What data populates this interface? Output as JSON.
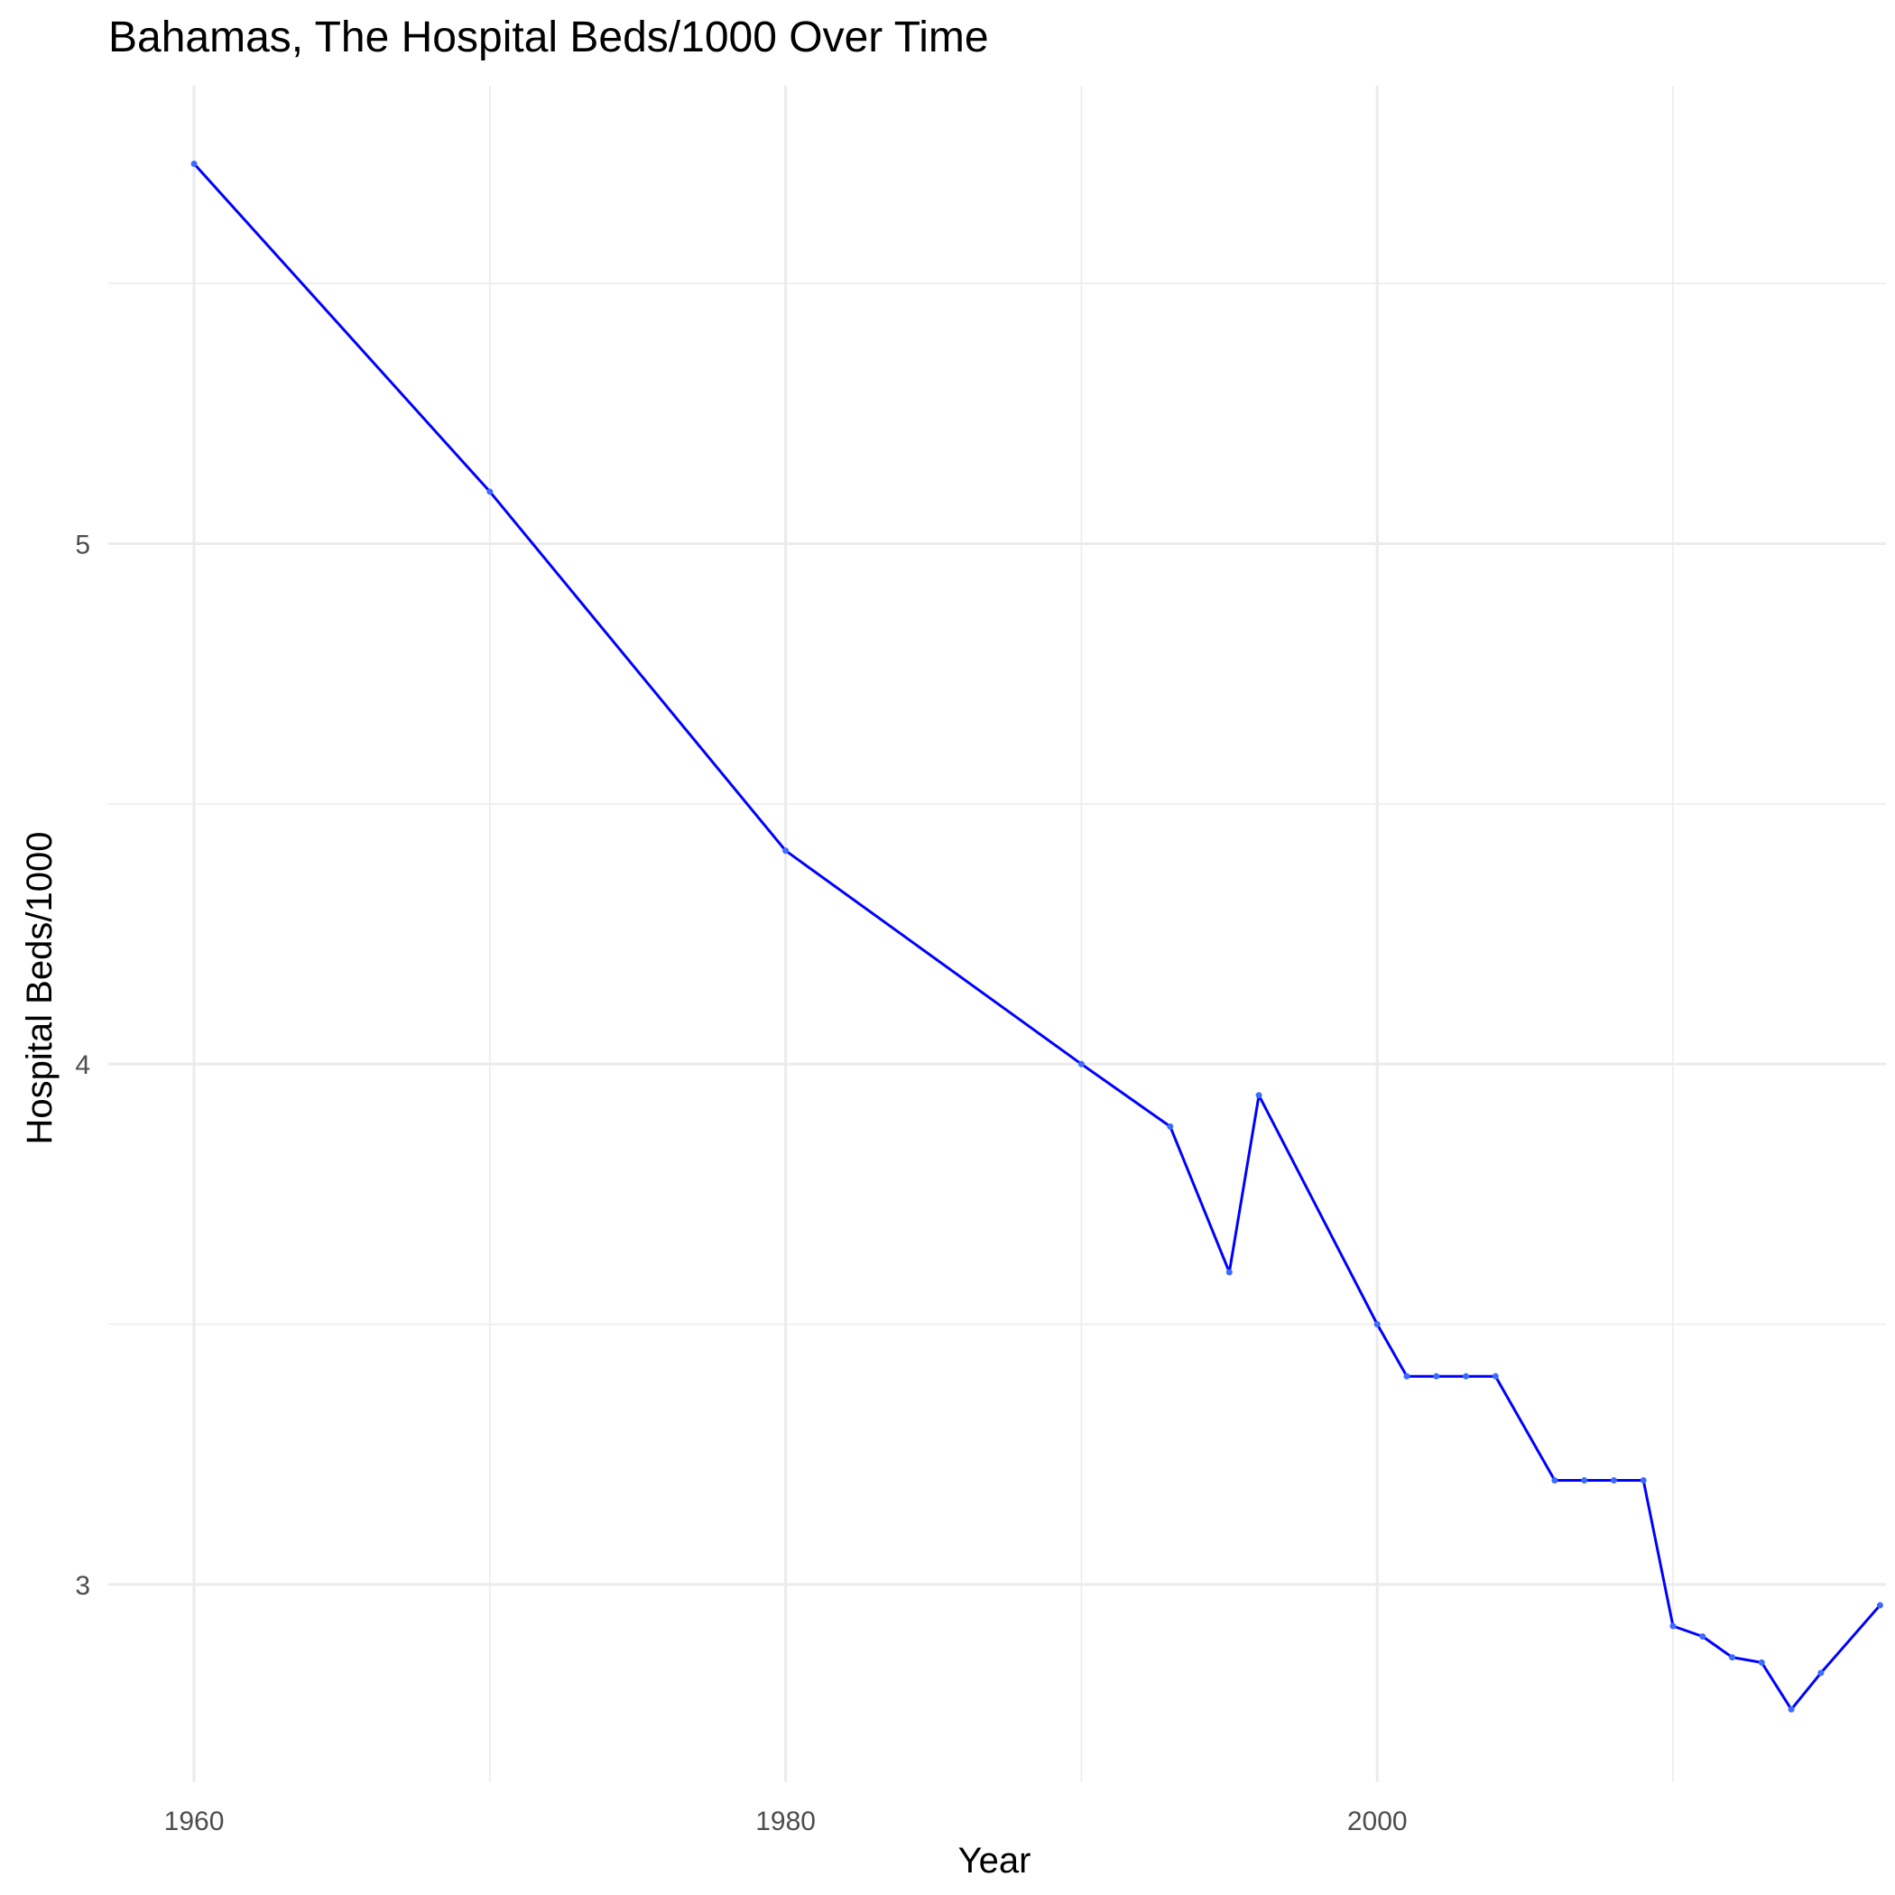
{
  "chart_data": {
    "type": "line",
    "title": "Bahamas, The Hospital Beds/1000 Over Time",
    "xlabel": "Year",
    "ylabel": "Hospital Beds/1000",
    "xlim": [
      1957.1,
      2017.2
    ],
    "ylim": [
      2.62,
      5.88
    ],
    "x_ticks": [
      1960,
      1980,
      2000
    ],
    "x_minor_ticks": [
      1970,
      1990,
      2010
    ],
    "y_ticks": [
      3,
      4,
      5
    ],
    "y_minor_ticks": [
      3.5,
      4.5,
      5.5
    ],
    "grid": true,
    "legend": "none",
    "series": [
      {
        "color": "#0000ff",
        "x": [
          1960,
          1970,
          1980,
          1990,
          1993,
          1995,
          1996,
          2000,
          2001,
          2002,
          2003,
          2004,
          2006,
          2007,
          2008,
          2009,
          2010,
          2011,
          2012,
          2013,
          2014,
          2015,
          2017
        ],
        "y": [
          5.73,
          5.1,
          4.41,
          4.0,
          3.88,
          3.6,
          3.94,
          3.5,
          3.4,
          3.4,
          3.4,
          3.4,
          3.2,
          3.2,
          3.2,
          3.2,
          2.92,
          2.9,
          2.86,
          2.85,
          2.76,
          2.83,
          2.96
        ]
      }
    ]
  }
}
